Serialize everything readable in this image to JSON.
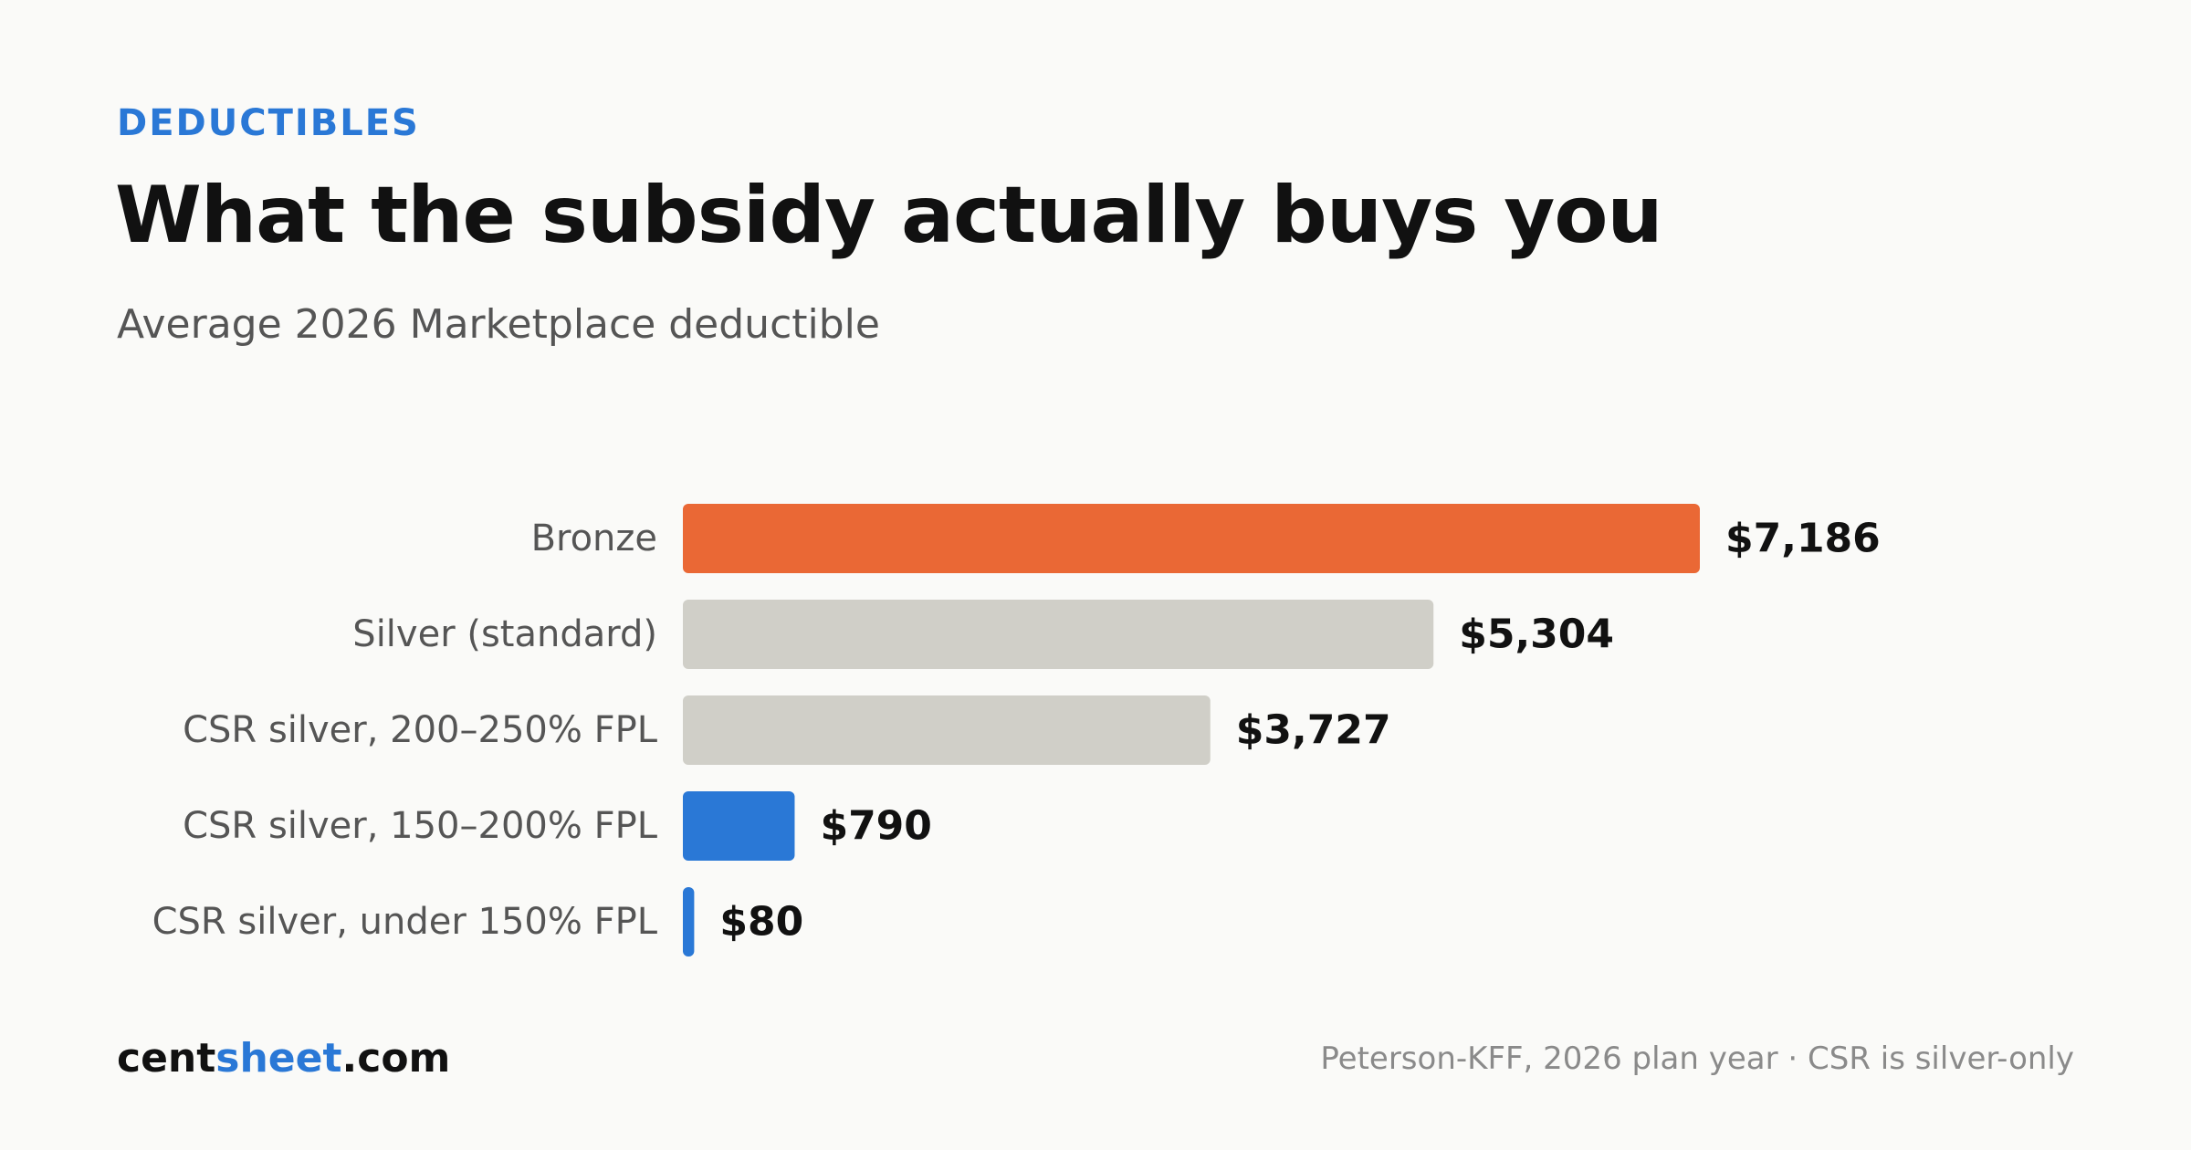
{
  "header": {
    "eyebrow": "DEDUCTIBLES",
    "title": "What the subsidy actually buys you",
    "subtitle": "Average 2026 Marketplace deductible"
  },
  "footer": {
    "brand_prefix": "cent",
    "brand_accent": "sheet",
    "brand_suffix": ".com",
    "source": "Peterson-KFF, 2026 plan year · CSR is silver-only"
  },
  "colors": {
    "accent_blue": "#2a78d6",
    "bronze_orange": "#ea6835",
    "neutral_gray": "#d0cfc8"
  },
  "chart_data": {
    "type": "bar",
    "orientation": "horizontal",
    "title": "What the subsidy actually buys you",
    "subtitle": "Average 2026 Marketplace deductible",
    "xlabel": "",
    "ylabel": "",
    "grid": false,
    "xlim": [
      0,
      7186
    ],
    "categories": [
      "Bronze",
      "Silver (standard)",
      "CSR silver, 200–250% FPL",
      "CSR silver, 150–200% FPL",
      "CSR silver, under 150% FPL"
    ],
    "values": [
      7186,
      5304,
      3727,
      790,
      80
    ],
    "value_labels": [
      "$7,186",
      "$5,304",
      "$3,727",
      "$790",
      "$80"
    ],
    "bar_colors": [
      "#ea6835",
      "#d0cfc8",
      "#d0cfc8",
      "#2a78d6",
      "#2a78d6"
    ]
  }
}
